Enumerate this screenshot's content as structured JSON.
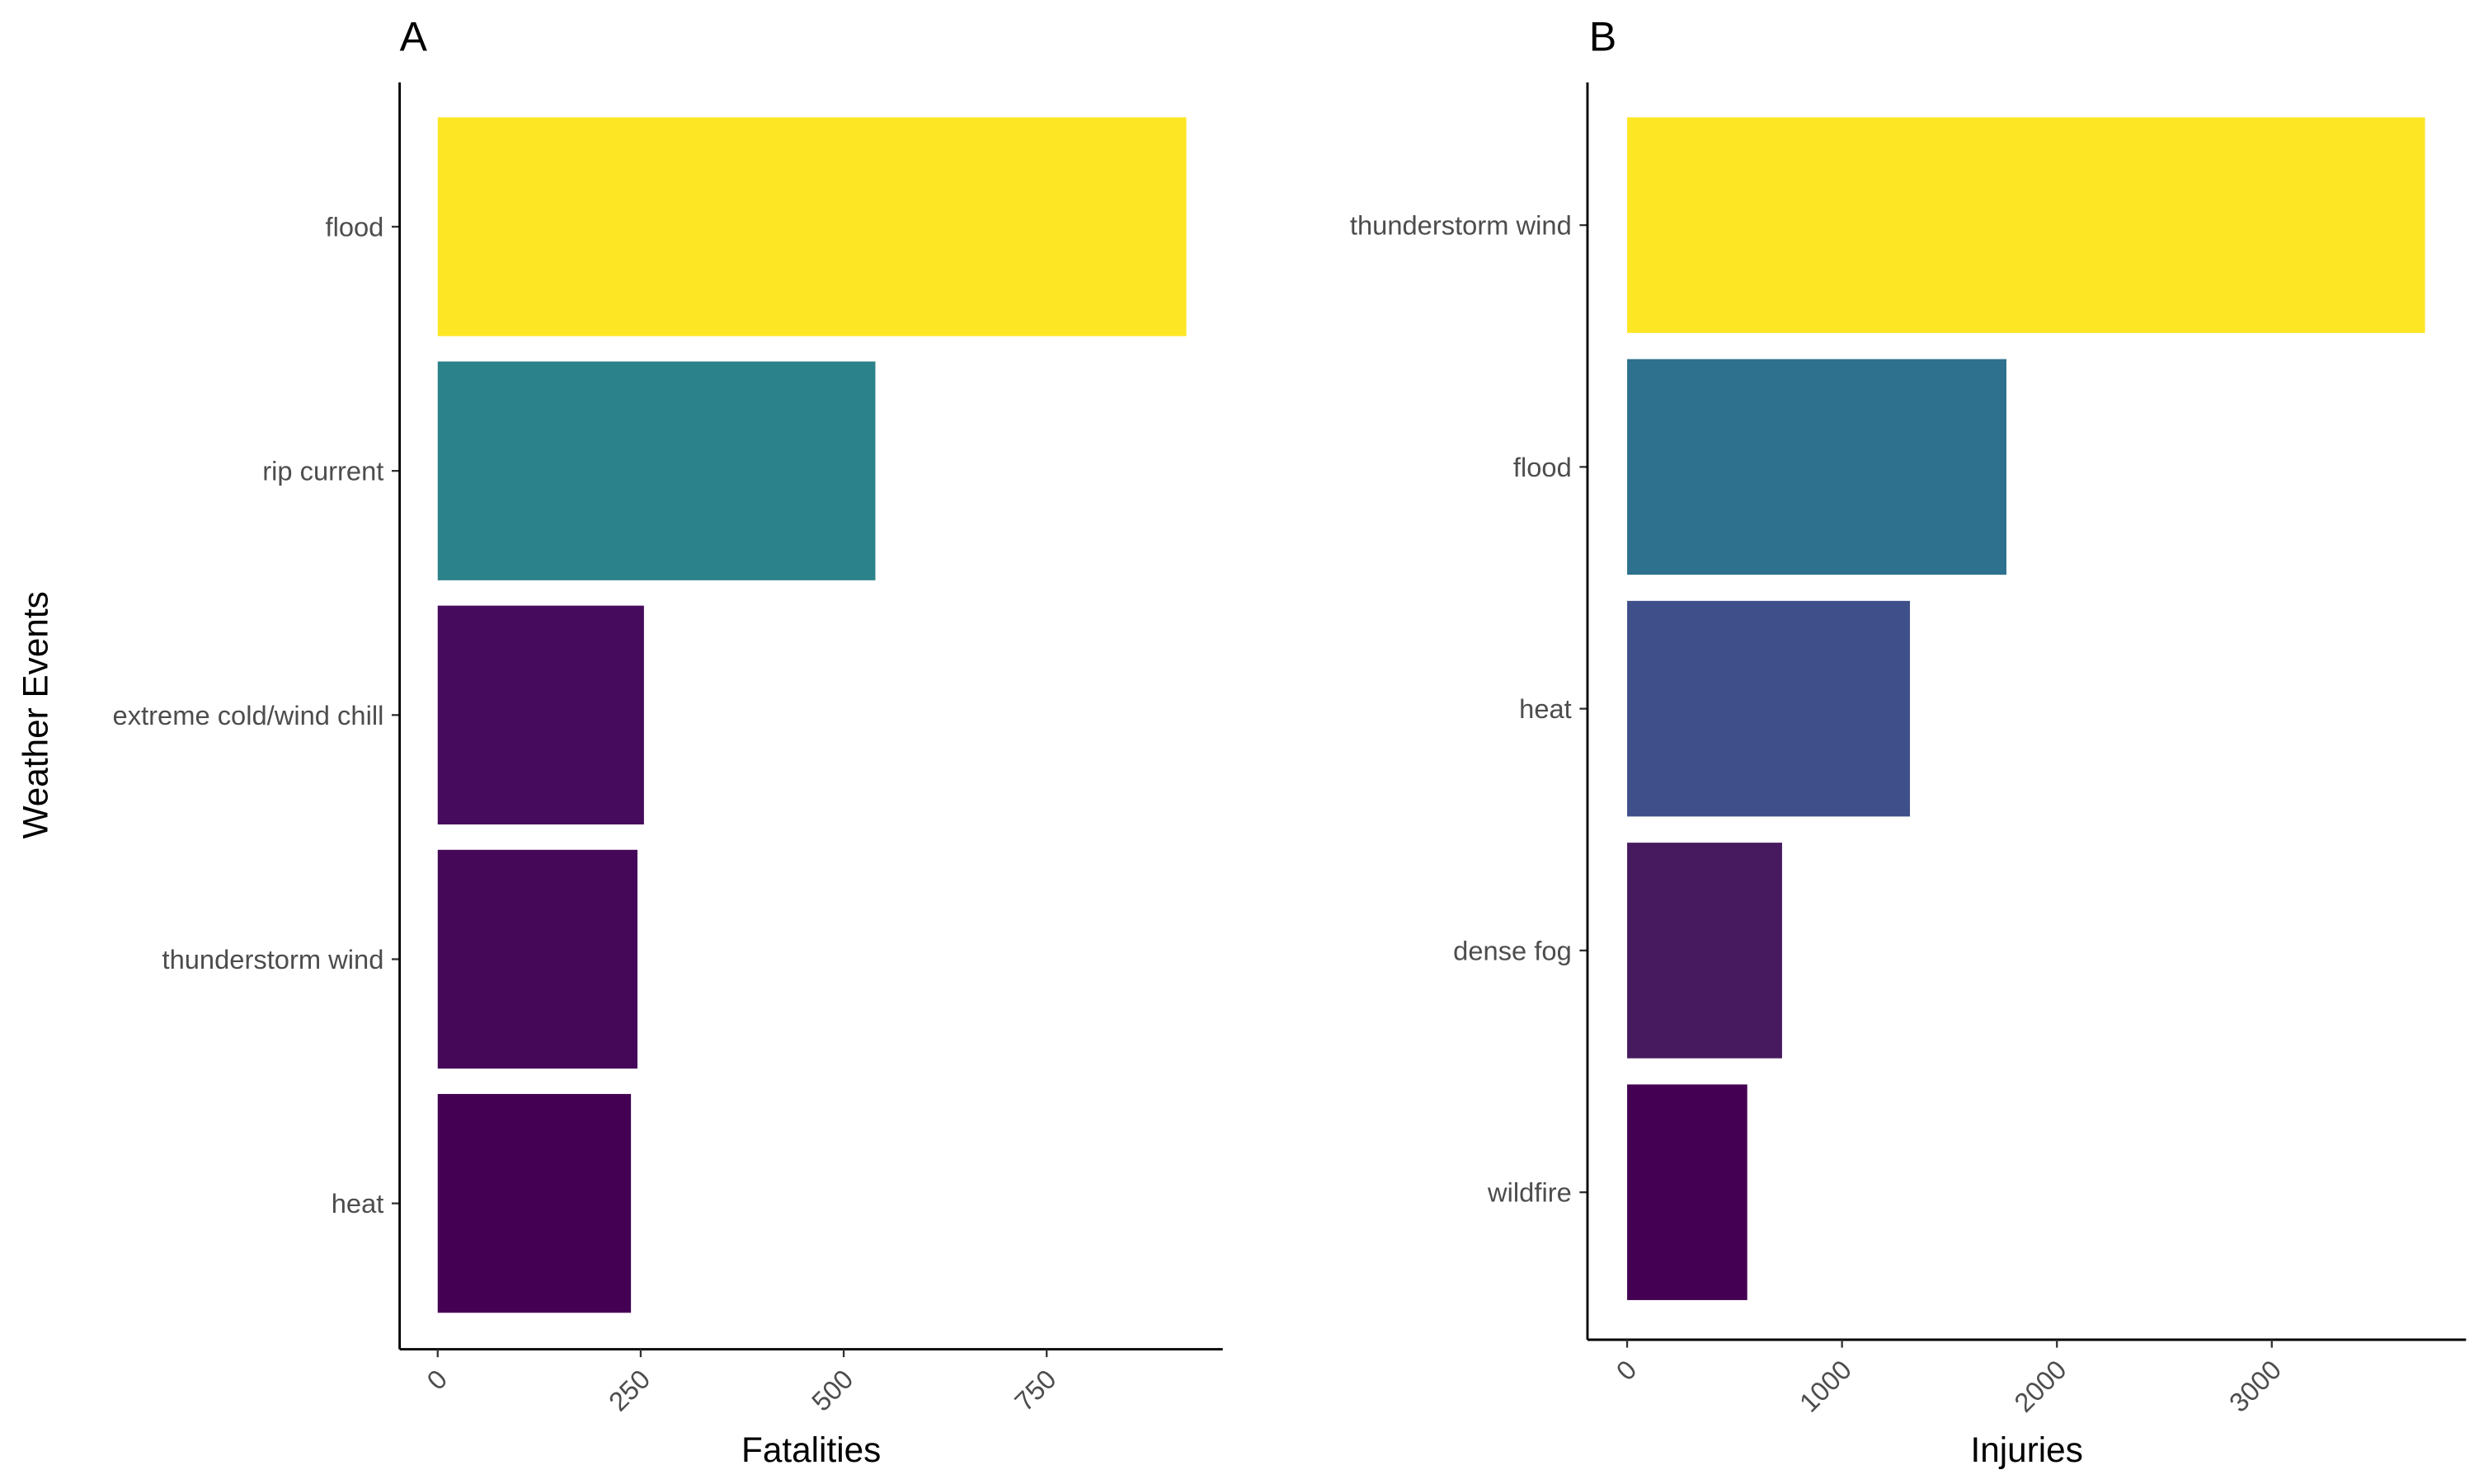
{
  "chart_data": [
    {
      "type": "bar",
      "orientation": "horizontal",
      "tag": "A",
      "categories": [
        "flood",
        "rip current",
        "extreme cold/wind chill",
        "thunderstorm wind",
        "heat"
      ],
      "values": [
        922,
        539,
        254,
        246,
        238
      ],
      "colors": [
        "#FDE725",
        "#2C828A",
        "#460B5C",
        "#450859",
        "#440154"
      ],
      "xlabel": "Fatalities",
      "ylabel": "Weather Events",
      "xticks": [
        0,
        250,
        500,
        750
      ],
      "xlim": [
        -47,
        967
      ],
      "grid": false
    },
    {
      "type": "bar",
      "orientation": "horizontal",
      "tag": "B",
      "categories": [
        "thunderstorm wind",
        "flood",
        "heat",
        "dense fog",
        "wildfire"
      ],
      "values": [
        3713,
        1765,
        1316,
        721,
        559
      ],
      "colors": [
        "#FDE725",
        "#2D718E",
        "#3F4F8A",
        "#471A5F",
        "#440154"
      ],
      "xlabel": "Injuries",
      "ylabel": "",
      "xticks": [
        0,
        1000,
        2000,
        3000
      ],
      "xlim": [
        -176,
        3900
      ],
      "grid": false
    }
  ]
}
